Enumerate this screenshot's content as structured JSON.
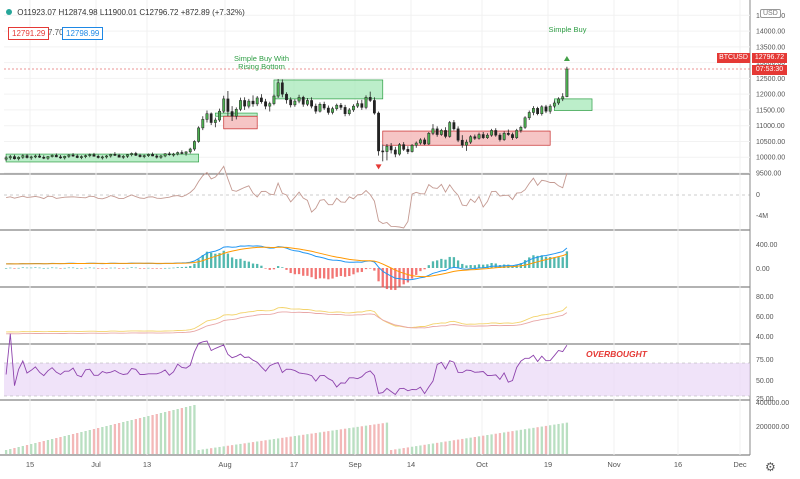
{
  "header": {
    "open": "O11923.07",
    "high": "H12874.98",
    "low": "L11900.01",
    "close": "C12796.72",
    "change": "+872.89 (+7.32%)",
    "bid": "12791.29",
    "spread": "7.70",
    "ask": "12798.99",
    "currency": "USD"
  },
  "price_tag": {
    "symbol": "BTCUSD",
    "price": "12796.72",
    "countdown": "07:53:30"
  },
  "annotations": {
    "simple_buy": "Simple Buy",
    "rising_line1": "Simple Buy With",
    "rising_line2": "Rising Bottom",
    "overbought": "OVERBOUGHT"
  },
  "axes": {
    "price_ticks": [
      "14500.00",
      "14000.00",
      "13500.00",
      "13000.00",
      "12500.00",
      "12000.00",
      "11500.00",
      "11000.00",
      "10500.00",
      "10000.00",
      "9500.00"
    ],
    "osc1_ticks": [
      "0",
      "-4M"
    ],
    "macd_ticks": [
      "400.00",
      "0.00"
    ],
    "stoch_ticks": [
      "80.00",
      "60.00",
      "40.00"
    ],
    "rsi_ticks": [
      "75.00",
      "50.00",
      "25.00"
    ],
    "volume_ticks": [
      "400000.00",
      "200000.00"
    ],
    "time_labels": [
      "15",
      "Jul",
      "13",
      "Aug",
      "17",
      "Sep",
      "14",
      "Oct",
      "19",
      "Nov",
      "16",
      "Dec"
    ]
  },
  "colors": {
    "up": "#26a69a",
    "down": "#ef5350",
    "green_box": "#a5e8b8",
    "red_box": "#f4b6b6",
    "macd_line": "#2196f3",
    "signal_line": "#ff9800",
    "rsi_band": "#e9d7f7",
    "rsi_line": "#8e44ad",
    "volume_up": "#b9dfc1",
    "volume_down": "#f3b8b8"
  },
  "chart_data": {
    "type": "candlestick",
    "price_range": [
      9500,
      14700
    ],
    "candles": [
      [
        9940,
        10040,
        9880,
        9980
      ],
      [
        9980,
        10070,
        9920,
        10020
      ],
      [
        10020,
        10080,
        9930,
        9950
      ],
      [
        9950,
        10030,
        9900,
        10000
      ],
      [
        10000,
        10090,
        9950,
        10050
      ],
      [
        10050,
        10100,
        9960,
        9990
      ],
      [
        9990,
        10050,
        9920,
        10010
      ],
      [
        10010,
        10080,
        9970,
        10040
      ],
      [
        10040,
        10110,
        9980,
        10000
      ],
      [
        10000,
        10060,
        9940,
        9970
      ],
      [
        9970,
        10040,
        9920,
        10020
      ],
      [
        10020,
        10090,
        9990,
        10060
      ],
      [
        10060,
        10120,
        10000,
        10010
      ],
      [
        10010,
        10070,
        9950,
        9980
      ],
      [
        9980,
        10050,
        9930,
        10030
      ],
      [
        10030,
        10100,
        9980,
        10070
      ],
      [
        10070,
        10130,
        10010,
        10040
      ],
      [
        10040,
        10090,
        9970,
        9990
      ],
      [
        9990,
        10060,
        9940,
        10020
      ],
      [
        10020,
        10080,
        9970,
        10050
      ],
      [
        10050,
        10120,
        10000,
        10080
      ],
      [
        10080,
        10140,
        10020,
        10030
      ],
      [
        10030,
        10080,
        9960,
        9990
      ],
      [
        9990,
        10050,
        9930,
        10010
      ],
      [
        10010,
        10070,
        9960,
        10040
      ],
      [
        10040,
        10110,
        9990,
        10090
      ],
      [
        10090,
        10160,
        10040,
        10060
      ],
      [
        10060,
        10110,
        9990,
        10000
      ],
      [
        10000,
        10070,
        9950,
        10030
      ],
      [
        10030,
        10100,
        9980,
        10080
      ],
      [
        10080,
        10150,
        10030,
        10120
      ],
      [
        10120,
        10170,
        10040,
        10060
      ],
      [
        10060,
        10110,
        9990,
        10020
      ],
      [
        10020,
        10080,
        9970,
        10050
      ],
      [
        10050,
        10120,
        10010,
        10090
      ],
      [
        10090,
        10150,
        10030,
        10040
      ],
      [
        10040,
        10090,
        9960,
        10000
      ],
      [
        10000,
        10070,
        9950,
        10040
      ],
      [
        10040,
        10130,
        10000,
        10110
      ],
      [
        10110,
        10170,
        10050,
        10080
      ],
      [
        10080,
        10140,
        10020,
        10100
      ],
      [
        10100,
        10180,
        10060,
        10150
      ],
      [
        10150,
        10220,
        10090,
        10130
      ],
      [
        10130,
        10190,
        10050,
        10170
      ],
      [
        10170,
        10300,
        10120,
        10260
      ],
      [
        10260,
        10540,
        10200,
        10500
      ],
      [
        10500,
        10980,
        10460,
        10930
      ],
      [
        10930,
        11300,
        10860,
        11200
      ],
      [
        11200,
        11480,
        11100,
        11380
      ],
      [
        11380,
        11420,
        11020,
        11100
      ],
      [
        11100,
        11260,
        10950,
        11180
      ],
      [
        11180,
        11540,
        11120,
        11460
      ],
      [
        11460,
        11950,
        11400,
        11850
      ],
      [
        11850,
        12100,
        11300,
        11450
      ],
      [
        11450,
        11620,
        11150,
        11300
      ],
      [
        11300,
        11580,
        11200,
        11520
      ],
      [
        11520,
        11890,
        11460,
        11800
      ],
      [
        11800,
        11900,
        11500,
        11620
      ],
      [
        11620,
        11850,
        11550,
        11780
      ],
      [
        11780,
        11960,
        11600,
        11690
      ],
      [
        11690,
        11940,
        11620,
        11880
      ],
      [
        11880,
        12000,
        11700,
        11760
      ],
      [
        11760,
        11850,
        11520,
        11620
      ],
      [
        11620,
        11760,
        11450,
        11700
      ],
      [
        11700,
        11990,
        11650,
        11940
      ],
      [
        11940,
        12480,
        11880,
        12360
      ],
      [
        12360,
        12470,
        11900,
        12000
      ],
      [
        12000,
        12060,
        11700,
        11820
      ],
      [
        11820,
        11900,
        11580,
        11660
      ],
      [
        11660,
        11840,
        11600,
        11780
      ],
      [
        11780,
        11980,
        11710,
        11900
      ],
      [
        11900,
        11950,
        11600,
        11680
      ],
      [
        11680,
        11880,
        11620,
        11800
      ],
      [
        11800,
        11900,
        11550,
        11620
      ],
      [
        11620,
        11700,
        11380,
        11460
      ],
      [
        11460,
        11740,
        11420,
        11680
      ],
      [
        11680,
        11760,
        11500,
        11560
      ],
      [
        11560,
        11640,
        11350,
        11420
      ],
      [
        11420,
        11600,
        11360,
        11540
      ],
      [
        11540,
        11700,
        11480,
        11650
      ],
      [
        11650,
        11720,
        11500,
        11580
      ],
      [
        11580,
        11660,
        11300,
        11380
      ],
      [
        11380,
        11560,
        11320,
        11500
      ],
      [
        11500,
        11680,
        11440,
        11620
      ],
      [
        11620,
        11800,
        11560,
        11700
      ],
      [
        11700,
        11820,
        11500,
        11580
      ],
      [
        11580,
        11960,
        11520,
        11900
      ],
      [
        11900,
        12080,
        11750,
        11800
      ],
      [
        11800,
        11900,
        11350,
        11400
      ],
      [
        11400,
        11450,
        10050,
        10200
      ],
      [
        10200,
        10400,
        9870,
        10180
      ],
      [
        10180,
        10420,
        9900,
        10350
      ],
      [
        10350,
        10450,
        10120,
        10230
      ],
      [
        10230,
        10330,
        10000,
        10100
      ],
      [
        10100,
        10450,
        10050,
        10400
      ],
      [
        10400,
        10480,
        10200,
        10250
      ],
      [
        10250,
        10350,
        10100,
        10180
      ],
      [
        10180,
        10420,
        10150,
        10380
      ],
      [
        10380,
        10500,
        10300,
        10450
      ],
      [
        10450,
        10600,
        10400,
        10550
      ],
      [
        10550,
        10620,
        10380,
        10420
      ],
      [
        10420,
        10800,
        10390,
        10760
      ],
      [
        10760,
        11050,
        10700,
        10900
      ],
      [
        10900,
        10980,
        10650,
        10720
      ],
      [
        10720,
        10900,
        10680,
        10850
      ],
      [
        10850,
        10950,
        10600,
        10660
      ],
      [
        10660,
        11150,
        10620,
        11100
      ],
      [
        11100,
        11180,
        10850,
        10900
      ],
      [
        10900,
        10980,
        10480,
        10540
      ],
      [
        10540,
        10700,
        10300,
        10380
      ],
      [
        10380,
        10560,
        10200,
        10480
      ],
      [
        10480,
        10700,
        10420,
        10650
      ],
      [
        10650,
        10720,
        10550,
        10600
      ],
      [
        10600,
        10780,
        10560,
        10720
      ],
      [
        10720,
        10800,
        10580,
        10620
      ],
      [
        10620,
        10760,
        10580,
        10700
      ],
      [
        10700,
        10900,
        10650,
        10850
      ],
      [
        10850,
        10920,
        10650,
        10700
      ],
      [
        10700,
        10760,
        10500,
        10560
      ],
      [
        10560,
        10820,
        10520,
        10760
      ],
      [
        10760,
        10880,
        10680,
        10720
      ],
      [
        10720,
        10780,
        10550,
        10620
      ],
      [
        10620,
        10900,
        10580,
        10850
      ],
      [
        10850,
        11000,
        10780,
        10950
      ],
      [
        10950,
        11300,
        10900,
        11250
      ],
      [
        11250,
        11480,
        11180,
        11420
      ],
      [
        11420,
        11620,
        11330,
        11550
      ],
      [
        11550,
        11600,
        11330,
        11380
      ],
      [
        11380,
        11650,
        11320,
        11600
      ],
      [
        11600,
        11660,
        11400,
        11460
      ],
      [
        11460,
        11680,
        11380,
        11620
      ],
      [
        11620,
        11800,
        11560,
        11720
      ],
      [
        11720,
        11900,
        11660,
        11850
      ],
      [
        11850,
        12030,
        11780,
        11920
      ],
      [
        11920,
        12870,
        11900,
        12797
      ]
    ],
    "green_boxes": [
      {
        "start": 0,
        "end": 46,
        "top": 10100,
        "bottom": 9850
      },
      {
        "start": 50,
        "end": 60,
        "top": 11400,
        "bottom": 11300
      },
      {
        "start": 64,
        "end": 90,
        "top": 12450,
        "bottom": 11850
      },
      {
        "start": 131,
        "end": 140,
        "top": 11850,
        "bottom": 11480
      }
    ],
    "red_boxes": [
      {
        "start": 52,
        "end": 60,
        "top": 11300,
        "bottom": 10900
      },
      {
        "start": 90,
        "end": 130,
        "top": 10830,
        "bottom": 10380
      }
    ]
  }
}
